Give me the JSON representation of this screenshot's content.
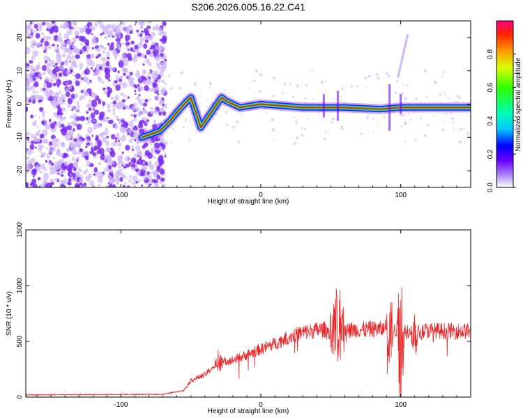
{
  "title": "S206.2026.005.16.22.C41",
  "colors": {
    "snr_line": "#e8282a",
    "ridge": "#e8282a",
    "scatter": "#7a2bf0",
    "scatter_light": "#cdb6f7"
  },
  "chart_data": [
    {
      "id": "spectrogram",
      "type": "heatmap",
      "xlabel": "Height of straight line (km)",
      "ylabel": "Frequency (Hz)",
      "xlim": [
        -168,
        150
      ],
      "ylim": [
        -25,
        25
      ],
      "xticks": [
        -100,
        0,
        100
      ],
      "yticks": [
        -20,
        -10,
        0,
        10,
        20
      ],
      "colorbar": {
        "label": "Normalized spectral amplitude",
        "range": [
          0,
          1
        ],
        "ticks": [
          "0.0",
          "0.2",
          "0.4",
          "0.6",
          "0.8"
        ]
      },
      "ridge": [
        {
          "x": -85,
          "y": -10
        },
        {
          "x": -72,
          "y": -8
        },
        {
          "x": -65,
          "y": -5
        },
        {
          "x": -57,
          "y": -1
        },
        {
          "x": -50,
          "y": 2
        },
        {
          "x": -43,
          "y": -7
        },
        {
          "x": -38,
          "y": -4
        },
        {
          "x": -33,
          "y": -1
        },
        {
          "x": -28,
          "y": 2
        },
        {
          "x": -25,
          "y": 1
        },
        {
          "x": -15,
          "y": -1
        },
        {
          "x": 0,
          "y": 0
        },
        {
          "x": 30,
          "y": -1
        },
        {
          "x": 60,
          "y": -1
        },
        {
          "x": 85,
          "y": -1.5
        },
        {
          "x": 100,
          "y": -1
        },
        {
          "x": 150,
          "y": -1
        }
      ]
    },
    {
      "id": "snr",
      "type": "line",
      "xlabel": "Height of straight line (km)",
      "ylabel": "SNR (10 * v/v)",
      "xlim": [
        -168,
        150
      ],
      "ylim": [
        0,
        1500
      ],
      "xticks": [
        -100,
        0,
        100
      ],
      "yticks": [
        0,
        500,
        1000,
        1500
      ],
      "envelope": [
        {
          "x": -168,
          "y": 20
        },
        {
          "x": -70,
          "y": 25
        },
        {
          "x": -55,
          "y": 60
        },
        {
          "x": -50,
          "y": 150
        },
        {
          "x": -40,
          "y": 200
        },
        {
          "x": -30,
          "y": 320
        },
        {
          "x": -20,
          "y": 330
        },
        {
          "x": -10,
          "y": 380
        },
        {
          "x": 0,
          "y": 430
        },
        {
          "x": 10,
          "y": 480
        },
        {
          "x": 20,
          "y": 540
        },
        {
          "x": 30,
          "y": 580
        },
        {
          "x": 40,
          "y": 600
        },
        {
          "x": 50,
          "y": 610
        },
        {
          "x": 60,
          "y": 600
        },
        {
          "x": 80,
          "y": 610
        },
        {
          "x": 100,
          "y": 600
        },
        {
          "x": 150,
          "y": 590
        }
      ],
      "bursts": [
        {
          "x": -30,
          "width": 4,
          "amp": 450
        },
        {
          "x": 55,
          "width": 8,
          "amp": 1050
        },
        {
          "x": 92,
          "width": 4,
          "amp": 1050
        },
        {
          "x": 100,
          "width": 3,
          "amp": 1500
        },
        {
          "x": 110,
          "width": 4,
          "amp": 900
        }
      ]
    }
  ]
}
